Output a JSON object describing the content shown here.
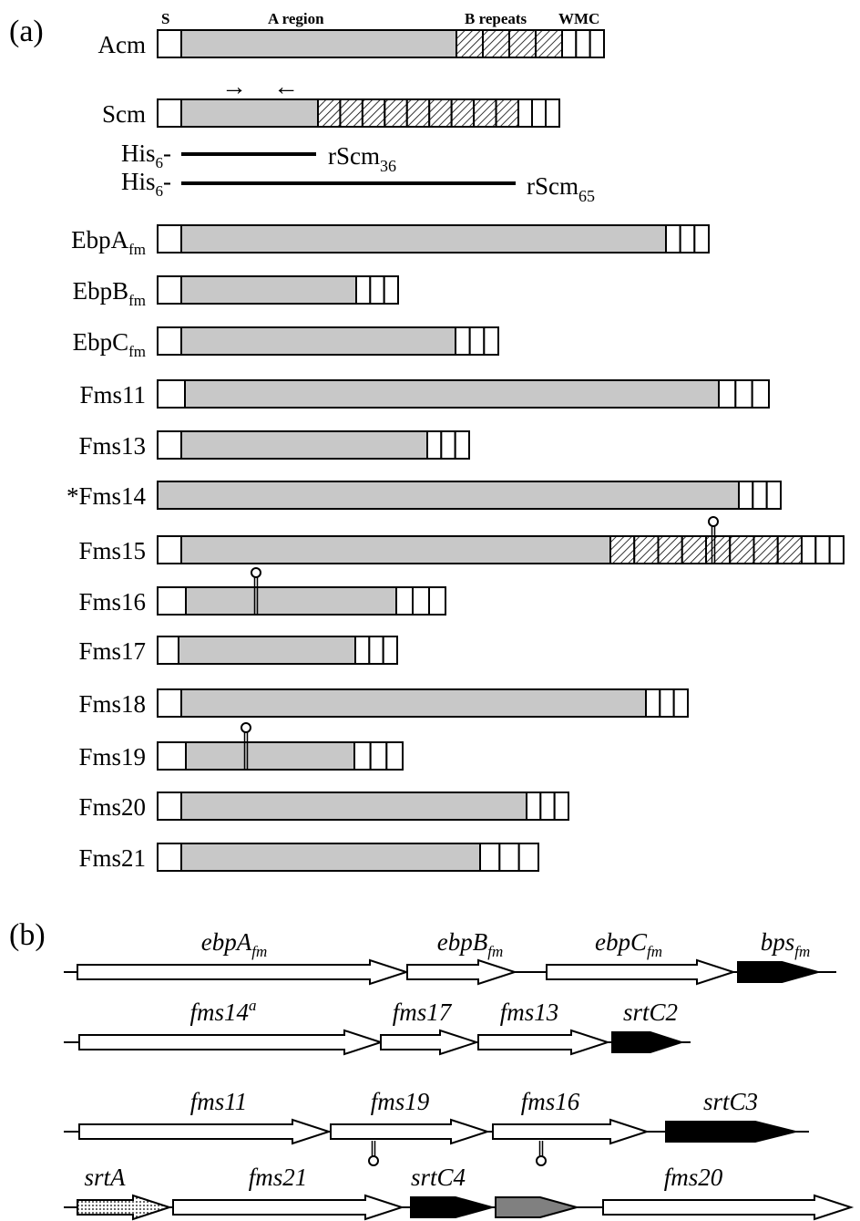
{
  "panel_a": {
    "label": "(a)",
    "domain_headers": {
      "s": "S",
      "a": "A region",
      "b": "B repeats",
      "wmc": "WMC"
    },
    "proteins": [
      {
        "name": "Acm",
        "sub": "",
        "length": 100
      },
      {
        "name": "Scm",
        "sub": "",
        "length": 100
      },
      {
        "name": "EbpA",
        "sub": "fm",
        "length": 100
      },
      {
        "name": "EbpB",
        "sub": "fm",
        "length": 100
      },
      {
        "name": "EbpC",
        "sub": "fm",
        "length": 100
      },
      {
        "name": "Fms11",
        "sub": "",
        "length": 100
      },
      {
        "name": "Fms13",
        "sub": "",
        "length": 100
      },
      {
        "name": "*Fms14",
        "sub": "",
        "length": 100
      },
      {
        "name": "Fms15",
        "sub": "",
        "length": 100
      },
      {
        "name": "Fms16",
        "sub": "",
        "length": 100
      },
      {
        "name": "Fms17",
        "sub": "",
        "length": 100
      },
      {
        "name": "Fms18",
        "sub": "",
        "length": 100
      },
      {
        "name": "Fms19",
        "sub": "",
        "length": 100
      },
      {
        "name": "Fms20",
        "sub": "",
        "length": 100
      },
      {
        "name": "Fms21",
        "sub": "",
        "length": 100
      }
    ],
    "recombinants": [
      {
        "prefix": "His",
        "prefix_sub": "6",
        "dash": "-",
        "name": "rScm",
        "sub": "36"
      },
      {
        "prefix": "His",
        "prefix_sub": "6",
        "dash": "-",
        "name": "rScm",
        "sub": "65"
      }
    ],
    "primer_arrows": {
      "forward": "→",
      "reverse": "←"
    }
  },
  "panel_b": {
    "label": "(b)",
    "genes": [
      {
        "name": "ebpA",
        "sub": "fm",
        "sup": "",
        "fill": "white"
      },
      {
        "name": "ebpB",
        "sub": "fm",
        "sup": "",
        "fill": "white"
      },
      {
        "name": "ebpC",
        "sub": "fm",
        "sup": "",
        "fill": "white"
      },
      {
        "name": "bps",
        "sub": "fm",
        "sup": "",
        "fill": "black"
      },
      {
        "name": "fms14",
        "sub": "",
        "sup": "a",
        "fill": "white"
      },
      {
        "name": "fms17",
        "sub": "",
        "sup": "",
        "fill": "white"
      },
      {
        "name": "fms13",
        "sub": "",
        "sup": "",
        "fill": "white"
      },
      {
        "name": "srtC2",
        "sub": "",
        "sup": "",
        "fill": "black"
      },
      {
        "name": "fms11",
        "sub": "",
        "sup": "",
        "fill": "white"
      },
      {
        "name": "fms19",
        "sub": "",
        "sup": "",
        "fill": "white"
      },
      {
        "name": "fms16",
        "sub": "",
        "sup": "",
        "fill": "white"
      },
      {
        "name": "srtC3",
        "sub": "",
        "sup": "",
        "fill": "black"
      },
      {
        "name": "srtA",
        "sub": "",
        "sup": "",
        "fill": "dotted"
      },
      {
        "name": "fms21",
        "sub": "",
        "sup": "",
        "fill": "white"
      },
      {
        "name": "srtC4",
        "sub": "",
        "sup": "",
        "fill": "black"
      },
      {
        "name": "",
        "sub": "",
        "sup": "",
        "fill": "gray"
      },
      {
        "name": "fms20",
        "sub": "",
        "sup": "",
        "fill": "white"
      }
    ]
  },
  "colors": {
    "a_region": "#c8c8c8",
    "sortase": "#000000",
    "grey_gene": "#808080",
    "outline": "#000000"
  }
}
